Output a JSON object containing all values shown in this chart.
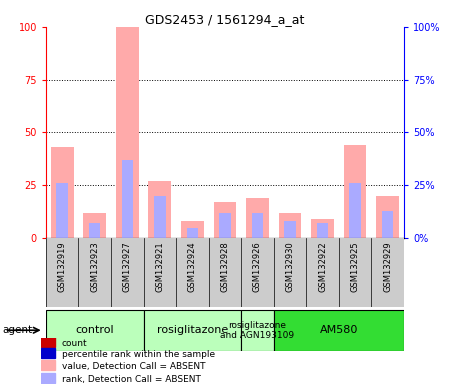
{
  "title": "GDS2453 / 1561294_a_at",
  "samples": [
    "GSM132919",
    "GSM132923",
    "GSM132927",
    "GSM132921",
    "GSM132924",
    "GSM132928",
    "GSM132926",
    "GSM132930",
    "GSM132922",
    "GSM132925",
    "GSM132929"
  ],
  "pink_bars": [
    43,
    12,
    100,
    27,
    8,
    17,
    19,
    12,
    9,
    44,
    20
  ],
  "lightblue_bars": [
    26,
    7,
    37,
    20,
    5,
    12,
    12,
    8,
    7,
    26,
    13
  ],
  "ylim": [
    0,
    100
  ],
  "yticks": [
    0,
    25,
    50,
    75,
    100
  ],
  "groups": [
    {
      "label": "control",
      "start": 0,
      "end": 3,
      "color": "#bbffbb"
    },
    {
      "label": "rosiglitazone",
      "start": 3,
      "end": 6,
      "color": "#bbffbb"
    },
    {
      "label": "rosiglitazone\nand AGN193109",
      "start": 6,
      "end": 7,
      "color": "#bbffbb"
    },
    {
      "label": "AM580",
      "start": 7,
      "end": 11,
      "color": "#33dd33"
    }
  ],
  "pink_color": "#ffaaaa",
  "lightblue_color": "#aaaaff",
  "red_color": "#cc0000",
  "blue_color": "#0000cc",
  "gray_color": "#cccccc",
  "legend_labels": [
    "count",
    "percentile rank within the sample",
    "value, Detection Call = ABSENT",
    "rank, Detection Call = ABSENT"
  ]
}
